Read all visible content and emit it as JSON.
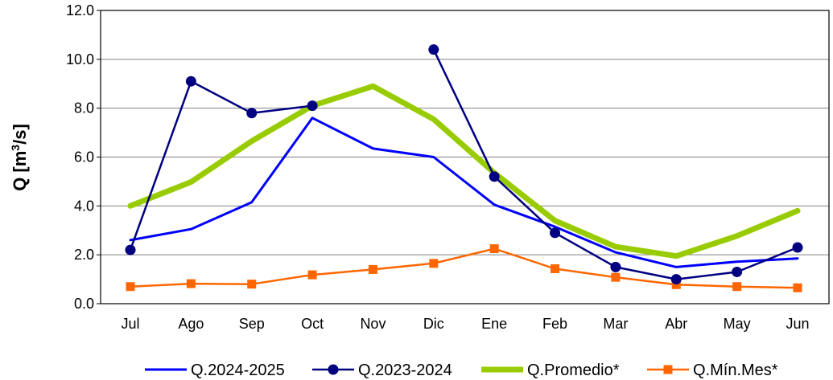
{
  "chart_data": {
    "type": "line",
    "ylabel": "Q [m",
    "ylabel_sup": "3",
    "ylabel_end": "/s]",
    "ylim": [
      0,
      12
    ],
    "yticks": [
      "0.0",
      "2.0",
      "4.0",
      "6.0",
      "8.0",
      "10.0",
      "12.0"
    ],
    "ytick_values": [
      0,
      2,
      4,
      6,
      8,
      10,
      12
    ],
    "grid": true,
    "legend_position": "bottom",
    "categories": [
      "Jul",
      "Ago",
      "Sep",
      "Oct",
      "Nov",
      "Dic",
      "Ene",
      "Feb",
      "Mar",
      "Abr",
      "May",
      "Jun"
    ],
    "series": [
      {
        "name": "Q.2024-2025",
        "color": "#0000ff",
        "marker": "none",
        "width": 3,
        "values": [
          2.6,
          3.05,
          4.15,
          7.6,
          6.35,
          6.0,
          4.05,
          3.15,
          2.1,
          1.5,
          1.72,
          1.85
        ]
      },
      {
        "name": "Q.2023-2024",
        "color": "#000080",
        "marker": "circle",
        "width": 2.5,
        "values": [
          2.2,
          9.1,
          7.8,
          8.1,
          null,
          10.4,
          5.2,
          2.9,
          1.5,
          1.0,
          1.3,
          2.3
        ]
      },
      {
        "name": "Q.Promedio*",
        "color": "#99cc00",
        "marker": "none",
        "width": 7,
        "values": [
          4.0,
          4.98,
          6.65,
          8.1,
          8.9,
          7.55,
          5.35,
          3.4,
          2.33,
          1.95,
          2.77,
          3.8
        ]
      },
      {
        "name": "Q.Mín.Mes*",
        "color": "#ff6600",
        "marker": "square",
        "width": 2.5,
        "values": [
          0.7,
          0.82,
          0.8,
          1.18,
          1.4,
          1.65,
          2.25,
          1.43,
          1.08,
          0.78,
          0.7,
          0.65
        ]
      }
    ]
  }
}
